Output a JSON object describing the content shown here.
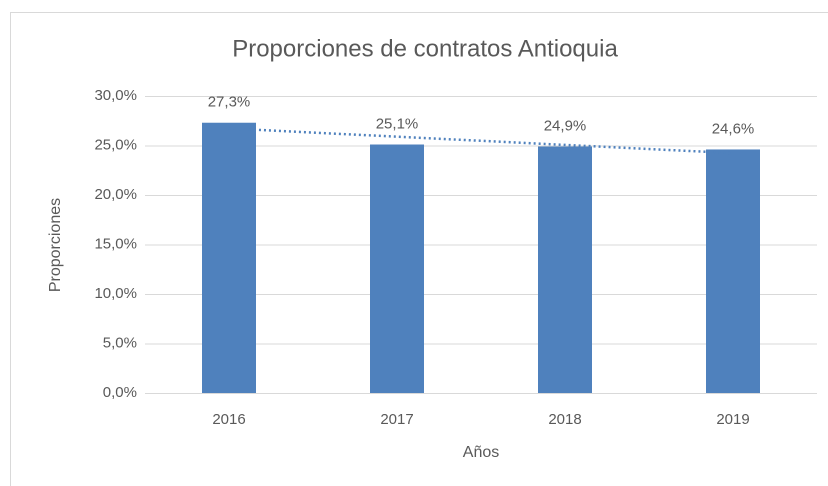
{
  "chart_data": {
    "type": "bar",
    "title": "Proporciones de contratos Antioquia",
    "x_label": "Años",
    "y_label": "Proporciones",
    "categories": [
      "2016",
      "2017",
      "2018",
      "2019"
    ],
    "values": [
      27.3,
      25.1,
      24.9,
      24.6
    ],
    "value_labels": [
      "27,3%",
      "25,1%",
      "24,9%",
      "24,6%"
    ],
    "color": "#4f81bd",
    "ylim": [
      0,
      30
    ],
    "yticks": [
      {
        "value": 0,
        "label": "0,0%"
      },
      {
        "value": 5,
        "label": "5,0%"
      },
      {
        "value": 10,
        "label": "10,0%"
      },
      {
        "value": 15,
        "label": "15,0%"
      },
      {
        "value": 20,
        "label": "20,0%"
      },
      {
        "value": 25,
        "label": "25,0%"
      },
      {
        "value": 30,
        "label": "30,0%"
      }
    ],
    "grid": true,
    "trendline": "linear",
    "trendline_color": "#4f81bd"
  }
}
